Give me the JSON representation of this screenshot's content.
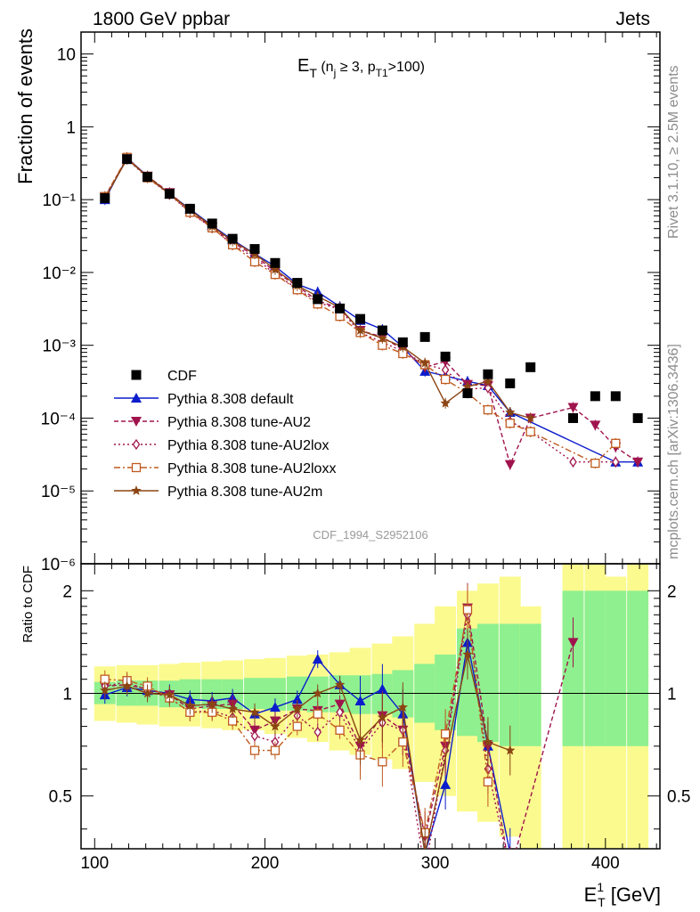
{
  "header": {
    "left": "1800 GeV ppbar",
    "right": "Jets",
    "top_title": "E",
    "top_title_sub": "T",
    "top_title_paren": " (n",
    "top_title_j": "j",
    "top_title_ge": " ≥ 3, p",
    "top_title_t1": "T1",
    "top_title_end": ">100)"
  },
  "side": {
    "rivet": "Rivet 3.1.10, ≥ 2.5M events",
    "mcplots": "mcplots.cern.ch [arXiv:1306.3436]"
  },
  "watermark": "CDF_1994_S2952106",
  "axes": {
    "top_ylabel": "Fraction of events",
    "bottom_ylabel": "Ratio to CDF",
    "xlabel_main": "E",
    "xlabel_sup": "1",
    "xlabel_sub": "T",
    "xlabel_unit": " [GeV]",
    "x_ticks": [
      "100",
      "200",
      "300",
      "400"
    ],
    "top_y_ticks": [
      "10",
      "1",
      "10⁻¹",
      "10⁻²",
      "10⁻³",
      "10⁻⁴",
      "10⁻⁵",
      "10⁻⁶"
    ],
    "bottom_y_ticks": [
      "2",
      "1",
      "0.5"
    ]
  },
  "legend": [
    {
      "label": "CDF",
      "color": "#000000",
      "marker": "square-filled",
      "dash": ""
    },
    {
      "label": "Pythia 8.308 default",
      "color": "#0b1ccc",
      "marker": "triangle-up",
      "dash": ""
    },
    {
      "label": "Pythia 8.308 tune-AU2",
      "color": "#a0144d",
      "marker": "triangle-down",
      "dash": "5,3"
    },
    {
      "label": "Pythia 8.308 tune-AU2lox",
      "color": "#a0144d",
      "marker": "diamond-open",
      "dash": "2,3"
    },
    {
      "label": "Pythia 8.308 tune-AU2loxx",
      "color": "#c05a1f",
      "marker": "square-open",
      "dash": "7,3,2,3"
    },
    {
      "label": "Pythia 8.308 tune-AU2m",
      "color": "#8b4513",
      "marker": "star",
      "dash": ""
    }
  ],
  "chart_data": {
    "type": "line",
    "x_axis": {
      "range": [
        92,
        432
      ],
      "scale": "linear"
    },
    "top_panel": {
      "y_scale": "log",
      "y_range": [
        1e-06,
        20
      ]
    },
    "bottom_panel": {
      "y_scale": "log",
      "y_range": [
        0.35,
        2.4
      ]
    },
    "x": [
      106,
      119,
      131,
      144,
      156,
      169,
      181,
      194,
      206,
      219,
      231,
      244,
      256,
      269,
      281,
      294,
      306,
      319,
      331,
      344,
      356,
      369,
      381,
      394,
      406,
      419
    ],
    "data": {
      "name": "CDF",
      "values": [
        0.105,
        0.36,
        0.205,
        0.12,
        0.075,
        0.047,
        0.029,
        0.021,
        0.0135,
        0.0072,
        0.0043,
        0.0032,
        0.0023,
        0.0016,
        0.0011,
        0.0013,
        0.0007,
        0.00022,
        0.0004,
        0.0003,
        0.0005,
        null,
        0.0001,
        0.0002,
        0.0002,
        0.0001
      ],
      "band_inner_lo": [
        0.93,
        0.92,
        0.92,
        0.91,
        0.91,
        0.9,
        0.9,
        0.9,
        0.89,
        0.89,
        0.88,
        0.88,
        0.87,
        0.87,
        0.85,
        0.82,
        0.78,
        0.75,
        0.72,
        0.7,
        0.7,
        null,
        0.7,
        0.7,
        0.7,
        0.7
      ],
      "band_inner_hi": [
        1.08,
        1.09,
        1.09,
        1.09,
        1.1,
        1.1,
        1.1,
        1.11,
        1.11,
        1.12,
        1.12,
        1.13,
        1.13,
        1.14,
        1.17,
        1.22,
        1.3,
        1.55,
        1.6,
        1.6,
        1.6,
        null,
        2.0,
        2.0,
        2.0,
        2.0
      ],
      "band_outer_lo": [
        0.83,
        0.82,
        0.81,
        0.8,
        0.8,
        0.79,
        0.78,
        0.78,
        0.76,
        0.74,
        0.72,
        0.68,
        0.66,
        0.64,
        0.6,
        0.55,
        0.5,
        0.45,
        0.42,
        0.38,
        0.35,
        null,
        0.35,
        0.35,
        0.35,
        0.35
      ],
      "band_outer_hi": [
        1.2,
        1.21,
        1.21,
        1.22,
        1.23,
        1.24,
        1.25,
        1.26,
        1.27,
        1.29,
        1.3,
        1.32,
        1.36,
        1.4,
        1.47,
        1.6,
        1.8,
        2.0,
        2.1,
        2.2,
        1.8,
        null,
        2.4,
        2.4,
        2.2,
        2.4
      ]
    },
    "series": [
      {
        "name": "Pythia 8.308 default",
        "values": [
          0.1,
          0.375,
          0.21,
          0.12,
          0.074,
          0.044,
          0.028,
          0.018,
          0.0122,
          0.0069,
          0.0054,
          0.0034,
          0.0022,
          0.00165,
          0.00095,
          0.00044,
          0.00038,
          0.00032,
          0.00028,
          0.00012,
          null,
          null,
          null,
          null,
          2.5e-05,
          2.5e-05
        ],
        "ratio": [
          0.99,
          1.04,
          1.02,
          1.0,
          0.96,
          0.95,
          0.97,
          0.87,
          0.91,
          0.96,
          1.26,
          1.06,
          0.95,
          1.03,
          0.87,
          0.34,
          0.54,
          1.41,
          0.7,
          0.34,
          null,
          null,
          null,
          null,
          null,
          null
        ]
      },
      {
        "name": "Pythia 8.308 tune-AU2",
        "values": [
          0.11,
          0.37,
          0.21,
          0.125,
          0.07,
          0.042,
          0.026,
          0.017,
          0.0103,
          0.0065,
          0.0041,
          0.0032,
          0.0016,
          0.0013,
          0.00087,
          0.0005,
          0.0006,
          0.00029,
          0.00028,
          2.3e-05,
          0.0001,
          null,
          0.00014,
          8e-05,
          4e-05,
          2.5e-05
        ],
        "ratio": [
          1.05,
          1.06,
          1.03,
          0.99,
          0.9,
          0.92,
          0.93,
          0.78,
          0.83,
          0.9,
          0.89,
          0.93,
          0.7,
          0.86,
          0.78,
          0.38,
          0.7,
          1.78,
          0.7,
          0.3,
          null,
          null,
          1.41,
          null,
          null,
          null
        ]
      },
      {
        "name": "Pythia 8.308 tune-AU2lox",
        "values": [
          0.108,
          0.36,
          0.2,
          0.118,
          0.066,
          0.041,
          0.024,
          0.016,
          0.0095,
          0.006,
          0.0039,
          0.0031,
          0.0015,
          0.0011,
          0.00083,
          0.00055,
          0.00046,
          0.00025,
          0.00026,
          9e-05,
          6.5e-05,
          null,
          2.5e-05,
          null,
          2.5e-05,
          null
        ],
        "ratio": [
          1.05,
          1.08,
          1.02,
          0.97,
          0.88,
          0.89,
          0.85,
          0.75,
          0.72,
          0.86,
          0.77,
          0.88,
          0.68,
          0.82,
          0.78,
          0.3,
          0.68,
          1.7,
          0.6,
          0.3,
          null,
          null,
          null,
          null,
          null,
          null
        ]
      },
      {
        "name": "Pythia 8.308 tune-AU2loxx",
        "values": [
          0.11,
          0.38,
          0.2,
          0.12,
          0.067,
          0.041,
          0.024,
          0.014,
          0.0094,
          0.0058,
          0.0037,
          0.0025,
          0.0015,
          0.001,
          0.00077,
          0.00054,
          0.00034,
          0.00022,
          0.00013,
          8.5e-05,
          6.5e-05,
          null,
          null,
          2.4e-05,
          4.5e-05,
          null
        ],
        "ratio": [
          1.1,
          1.09,
          1.05,
          0.97,
          0.88,
          0.88,
          0.83,
          0.68,
          0.68,
          0.8,
          0.87,
          0.78,
          0.66,
          0.63,
          0.72,
          0.39,
          0.76,
          1.76,
          0.55,
          null,
          null,
          null,
          null,
          null,
          null,
          null
        ]
      },
      {
        "name": "Pythia 8.308 tune-AU2m",
        "values": [
          0.105,
          0.36,
          0.21,
          0.12,
          0.072,
          0.043,
          0.027,
          0.018,
          0.011,
          0.0066,
          0.0047,
          0.0033,
          0.0016,
          0.00125,
          0.00095,
          0.00057,
          0.00016,
          0.00027,
          0.00032,
          0.00012,
          0.0001,
          null,
          null,
          null,
          null,
          null
        ],
        "ratio": [
          1.02,
          1.05,
          1.0,
          0.99,
          0.92,
          0.93,
          0.9,
          0.88,
          0.8,
          0.9,
          1.0,
          1.06,
          0.73,
          0.85,
          0.91,
          0.34,
          null,
          1.3,
          0.72,
          0.68,
          null,
          null,
          null,
          null,
          null,
          null
        ]
      }
    ]
  }
}
